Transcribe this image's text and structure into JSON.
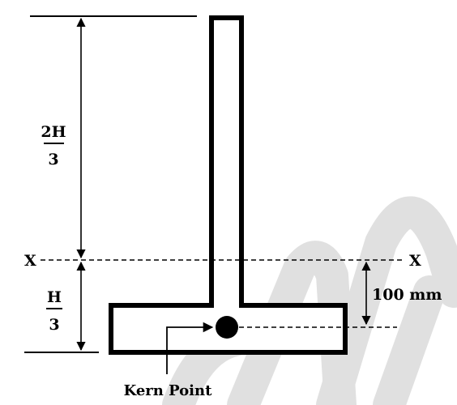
{
  "diagram": {
    "upper_height": {
      "numerator": "2H",
      "denominator": "3"
    },
    "lower_height": {
      "numerator": "H",
      "denominator": "3"
    },
    "axis_left": "X",
    "axis_right": "X",
    "offset_label": "100 mm",
    "kern_label": "Kern Point"
  }
}
